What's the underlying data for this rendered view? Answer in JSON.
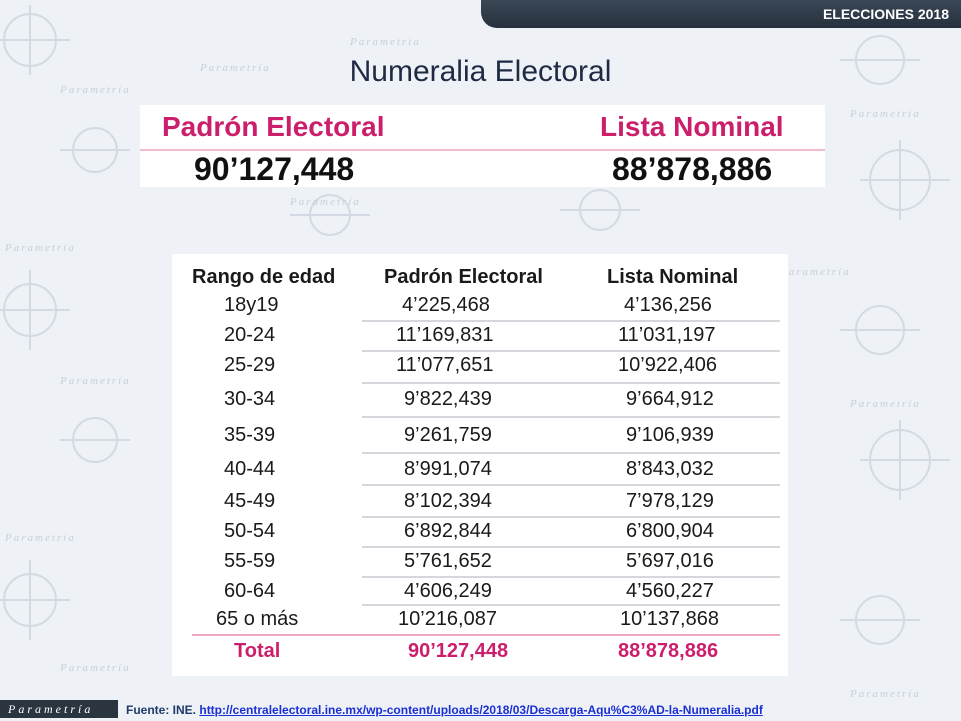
{
  "header": {
    "banner": "ELECCIONES 2018"
  },
  "title": "Numeralia Electoral",
  "summary": {
    "padron_label": "Padrón Electoral",
    "padron_value": "90’127,448",
    "lista_label": "Lista Nominal",
    "lista_value": "88’878,886"
  },
  "table": {
    "headers": [
      "Rango de edad",
      "Padrón Electoral",
      "Lista Nominal"
    ],
    "rows": [
      [
        "18y19",
        "4’225,468",
        "4’136,256"
      ],
      [
        "20-24",
        "11’169,831",
        "11’031,197"
      ],
      [
        "25-29",
        "11’077,651",
        "10’922,406"
      ],
      [
        "30-34",
        "9’822,439",
        "9’664,912"
      ],
      [
        "35-39",
        "9’261,759",
        "9’106,939"
      ],
      [
        "40-44",
        "8’991,074",
        "8’843,032"
      ],
      [
        "45-49",
        "8’102,394",
        "7’978,129"
      ],
      [
        "50-54",
        "6’892,844",
        "6’800,904"
      ],
      [
        "55-59",
        "5’761,652",
        "5’697,016"
      ],
      [
        "60-64",
        "4’606,249",
        "4’560,227"
      ],
      [
        "65 o más",
        "10’216,087",
        "10’137,868"
      ]
    ],
    "total": [
      "Total",
      "90’127,448",
      "88’878,886"
    ]
  },
  "footer": {
    "logo": "Parametría",
    "source_label": "Fuente: INE.",
    "source_url": "http://centralelectoral.ine.mx/wp-content/uploads/2018/03/Descarga-Aqu%C3%AD-la-Numeralia.pdf"
  },
  "watermark": "Parametría"
}
